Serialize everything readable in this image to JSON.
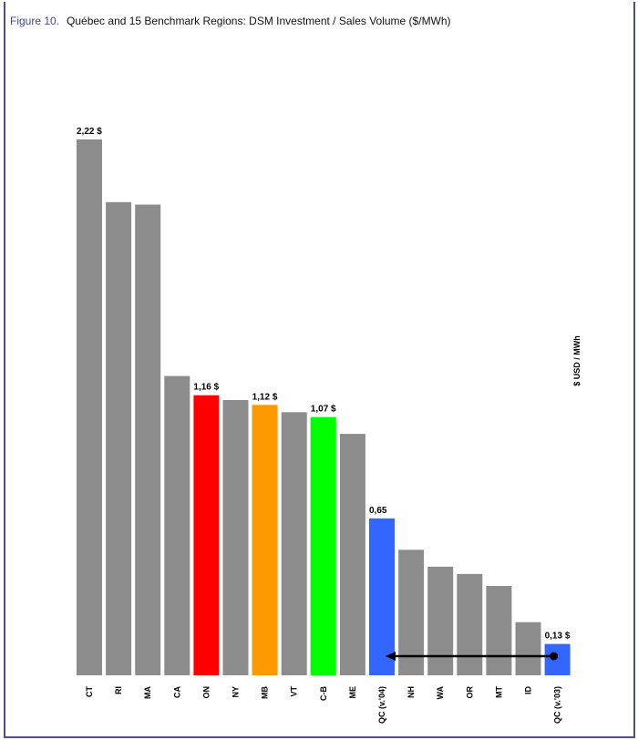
{
  "figure": {
    "label": "Figure 10.",
    "title": "Québec and 15 Benchmark Regions: DSM Investment / Sales Volume ($/MWh)"
  },
  "chart_data": {
    "type": "bar",
    "title": "Québec and 15 Benchmark Regions: DSM Investment / Sales Volume ($/MWh)",
    "ylabel": "$ USD / MWh",
    "ylim": [
      0,
      2.42
    ],
    "grid": false,
    "categories": [
      "CT",
      "RI",
      "MA",
      "CA",
      "ON",
      "NY",
      "MB",
      "VT",
      "C-B",
      "ME",
      "QC (v.'04)",
      "NH",
      "WA",
      "OR",
      "MT",
      "ID",
      "QC (v.'03)"
    ],
    "values": [
      2.22,
      1.96,
      1.95,
      1.24,
      1.16,
      1.14,
      1.12,
      1.09,
      1.07,
      1.0,
      0.65,
      0.52,
      0.45,
      0.42,
      0.37,
      0.22,
      0.13
    ],
    "colors": [
      "#8c8c8c",
      "#8c8c8c",
      "#8c8c8c",
      "#8c8c8c",
      "#ff0000",
      "#8c8c8c",
      "#ff9900",
      "#8c8c8c",
      "#00ff00",
      "#8c8c8c",
      "#3366ff",
      "#8c8c8c",
      "#8c8c8c",
      "#8c8c8c",
      "#8c8c8c",
      "#8c8c8c",
      "#3366ff"
    ],
    "data_labels": {
      "CT": "2,22 $",
      "ON": "1,16 $",
      "MB": "1,12 $",
      "C-B": "1,07 $",
      "QC (v.'04)": "0,65",
      "QC (v.'03)": "0,13 $"
    },
    "annotations": [
      {
        "type": "arrow",
        "from": "QC (v.'03)",
        "to": "QC (v.'04)",
        "color": "#000000"
      }
    ]
  }
}
